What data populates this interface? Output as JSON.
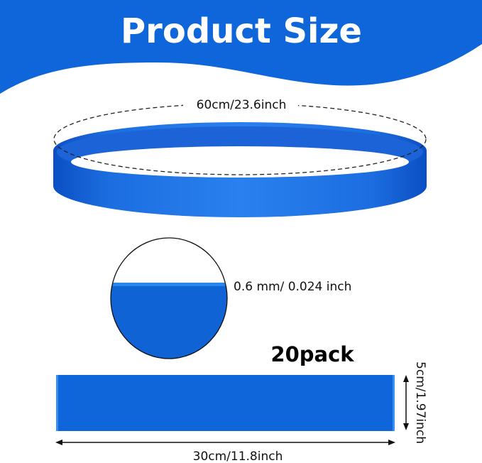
{
  "banner": {
    "title": "Product Size",
    "color": "#0f66da"
  },
  "ring": {
    "circumference_label": "60cm/23.6inch",
    "color": "#1a6fe0"
  },
  "cross_section": {
    "thickness_label": "0.6 mm/ 0.024 inch"
  },
  "strip": {
    "pack_label": "20pack",
    "length_label": "30cm/11.8inch",
    "width_label": "5cm/1.97inch"
  }
}
